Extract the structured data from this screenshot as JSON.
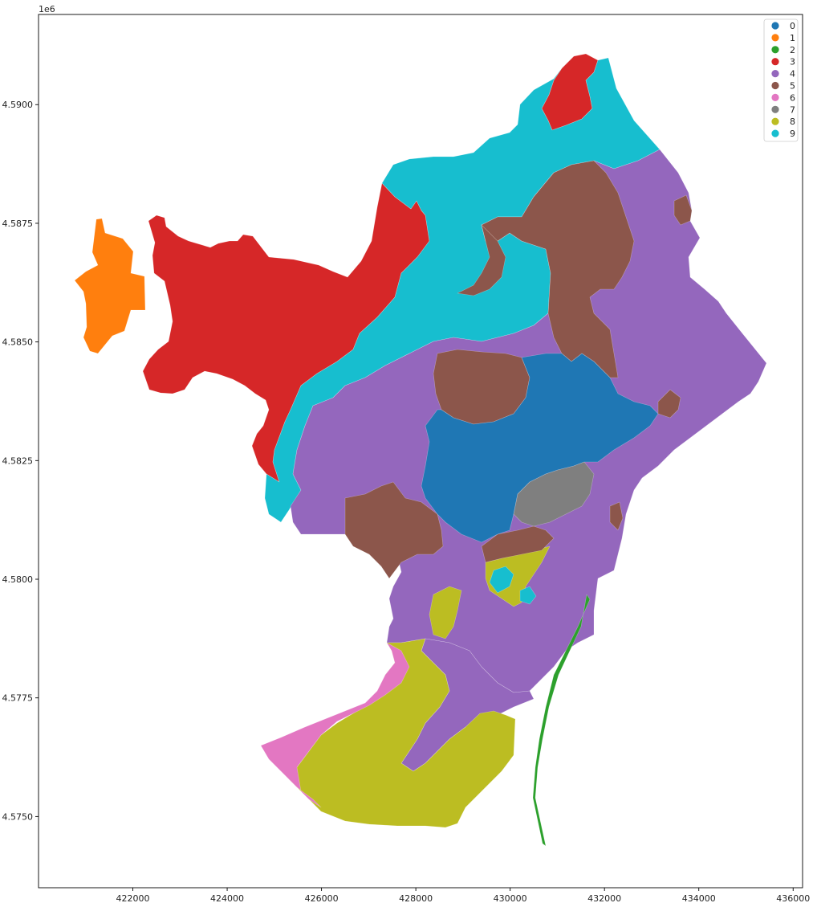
{
  "chart_data": {
    "type": "map",
    "description_of_axes": "projected coordinates",
    "xlabel": "",
    "ylabel": "",
    "y_offset_label": "1e6",
    "xlim": [
      420000,
      436200
    ],
    "ylim": [
      4573500,
      4591900
    ],
    "x_ticks": [
      422000,
      424000,
      426000,
      428000,
      430000,
      432000,
      434000,
      436000
    ],
    "x_tick_labels": [
      "422000",
      "424000",
      "426000",
      "428000",
      "430000",
      "432000",
      "434000",
      "436000"
    ],
    "y_ticks": [
      4575000,
      4577500,
      4580000,
      4582500,
      4585000,
      4587500,
      4590000
    ],
    "y_tick_labels": [
      "4.5750",
      "4.5775",
      "4.5800",
      "4.5825",
      "4.5850",
      "4.5875",
      "4.5900"
    ],
    "legend_position": "top-right",
    "categories": [
      {
        "label": "0",
        "color": "#1f77b4"
      },
      {
        "label": "1",
        "color": "#ff7f0e"
      },
      {
        "label": "2",
        "color": "#2ca02c"
      },
      {
        "label": "3",
        "color": "#d62728"
      },
      {
        "label": "4",
        "color": "#9467bd"
      },
      {
        "label": "5",
        "color": "#8c564b"
      },
      {
        "label": "6",
        "color": "#e377c2"
      },
      {
        "label": "7",
        "color": "#7f7f7f"
      },
      {
        "label": "8",
        "color": "#bcbd22"
      },
      {
        "label": "9",
        "color": "#17becf"
      }
    ]
  }
}
